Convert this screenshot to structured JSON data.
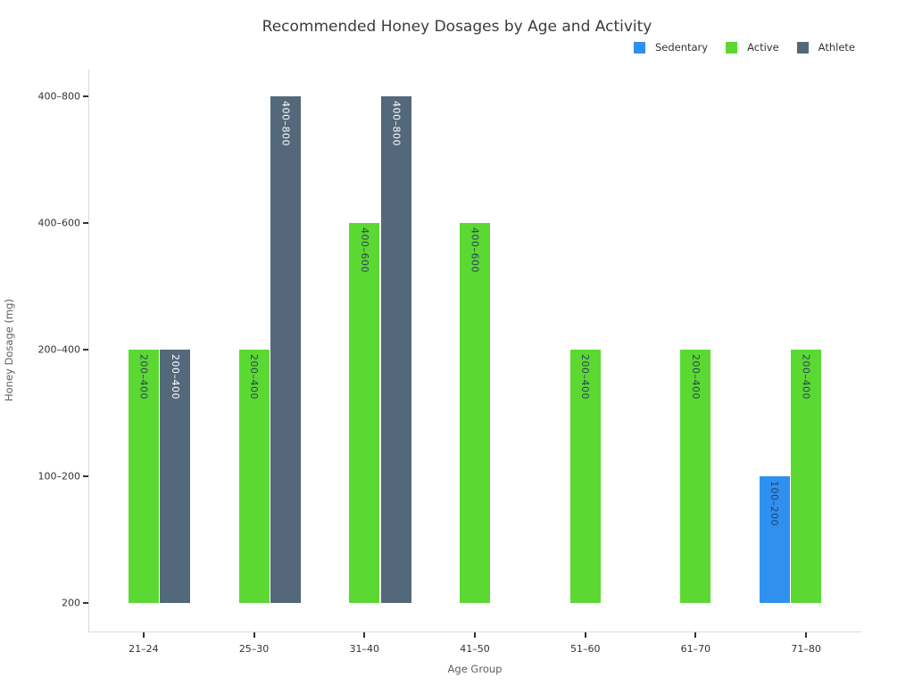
{
  "chart_data": {
    "type": "bar",
    "title": "Recommended Honey Dosages by Age and Activity",
    "xlabel": "Age Group",
    "ylabel": "Honey Dosage (mg)",
    "categories": [
      "21–24",
      "25–30",
      "31–40",
      "41–50",
      "51–60",
      "61–70",
      "71–80"
    ],
    "y_tick_labels_bottom_to_top": [
      "200",
      "100–200",
      "200–400",
      "400–600",
      "400–800"
    ],
    "series": [
      {
        "name": "Sedentary",
        "color": "#2f90f0",
        "label_color": "#2a3f5f",
        "values": [
          null,
          null,
          null,
          null,
          null,
          null,
          "100–200"
        ]
      },
      {
        "name": "Active",
        "color": "#5cd832",
        "label_color": "#2a3f5f",
        "values": [
          "200–400",
          "200–400",
          "400–600",
          "400–600",
          "200–400",
          "200–400",
          "200–400"
        ]
      },
      {
        "name": "Athlete",
        "color": "#53687a",
        "label_color": "#ffffff",
        "values": [
          "200–400",
          "400–800",
          "400–800",
          null,
          null,
          null,
          null
        ]
      }
    ],
    "legend_position": "top-right",
    "grid": false,
    "bar_value_labels": "inside-top, rotated vertical",
    "spine_color": "#d9d9d9",
    "tick_color": "#333333"
  }
}
